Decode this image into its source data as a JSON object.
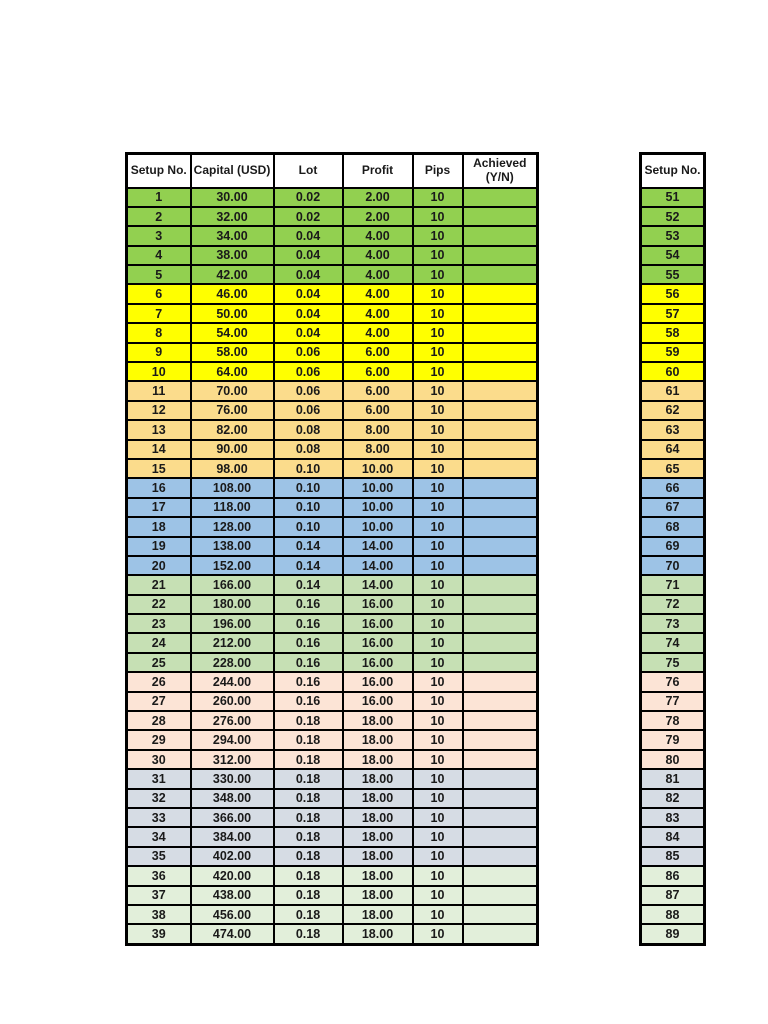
{
  "page": {
    "background": "#FFFFFF",
    "text_color": "#1A1A1A",
    "border_color": "#000000"
  },
  "band_colors": {
    "green": "#92D050",
    "yellow": "#FFFF00",
    "gold": "#FBDC8C",
    "blue": "#9DC3E6",
    "light_green": "#C6E0B4",
    "peach": "#FCE4D6",
    "gray_blue": "#D6DCE4",
    "pale_green": "#E2EFDA"
  },
  "main_table": {
    "headers": [
      "Setup No.",
      "Capital (USD)",
      "Lot",
      "Profit",
      "Pips",
      "Achieved\n(Y/N)"
    ],
    "rows": [
      [
        "1",
        "30.00",
        "0.02",
        "2.00",
        "10",
        "",
        "green"
      ],
      [
        "2",
        "32.00",
        "0.02",
        "2.00",
        "10",
        "",
        "green"
      ],
      [
        "3",
        "34.00",
        "0.04",
        "4.00",
        "10",
        "",
        "green"
      ],
      [
        "4",
        "38.00",
        "0.04",
        "4.00",
        "10",
        "",
        "green"
      ],
      [
        "5",
        "42.00",
        "0.04",
        "4.00",
        "10",
        "",
        "green"
      ],
      [
        "6",
        "46.00",
        "0.04",
        "4.00",
        "10",
        "",
        "yellow"
      ],
      [
        "7",
        "50.00",
        "0.04",
        "4.00",
        "10",
        "",
        "yellow"
      ],
      [
        "8",
        "54.00",
        "0.04",
        "4.00",
        "10",
        "",
        "yellow"
      ],
      [
        "9",
        "58.00",
        "0.06",
        "6.00",
        "10",
        "",
        "yellow"
      ],
      [
        "10",
        "64.00",
        "0.06",
        "6.00",
        "10",
        "",
        "yellow"
      ],
      [
        "11",
        "70.00",
        "0.06",
        "6.00",
        "10",
        "",
        "gold"
      ],
      [
        "12",
        "76.00",
        "0.06",
        "6.00",
        "10",
        "",
        "gold"
      ],
      [
        "13",
        "82.00",
        "0.08",
        "8.00",
        "10",
        "",
        "gold"
      ],
      [
        "14",
        "90.00",
        "0.08",
        "8.00",
        "10",
        "",
        "gold"
      ],
      [
        "15",
        "98.00",
        "0.10",
        "10.00",
        "10",
        "",
        "gold"
      ],
      [
        "16",
        "108.00",
        "0.10",
        "10.00",
        "10",
        "",
        "blue"
      ],
      [
        "17",
        "118.00",
        "0.10",
        "10.00",
        "10",
        "",
        "blue"
      ],
      [
        "18",
        "128.00",
        "0.10",
        "10.00",
        "10",
        "",
        "blue"
      ],
      [
        "19",
        "138.00",
        "0.14",
        "14.00",
        "10",
        "",
        "blue"
      ],
      [
        "20",
        "152.00",
        "0.14",
        "14.00",
        "10",
        "",
        "blue"
      ],
      [
        "21",
        "166.00",
        "0.14",
        "14.00",
        "10",
        "",
        "light_green"
      ],
      [
        "22",
        "180.00",
        "0.16",
        "16.00",
        "10",
        "",
        "light_green"
      ],
      [
        "23",
        "196.00",
        "0.16",
        "16.00",
        "10",
        "",
        "light_green"
      ],
      [
        "24",
        "212.00",
        "0.16",
        "16.00",
        "10",
        "",
        "light_green"
      ],
      [
        "25",
        "228.00",
        "0.16",
        "16.00",
        "10",
        "",
        "light_green"
      ],
      [
        "26",
        "244.00",
        "0.16",
        "16.00",
        "10",
        "",
        "peach"
      ],
      [
        "27",
        "260.00",
        "0.16",
        "16.00",
        "10",
        "",
        "peach"
      ],
      [
        "28",
        "276.00",
        "0.18",
        "18.00",
        "10",
        "",
        "peach"
      ],
      [
        "29",
        "294.00",
        "0.18",
        "18.00",
        "10",
        "",
        "peach"
      ],
      [
        "30",
        "312.00",
        "0.18",
        "18.00",
        "10",
        "",
        "peach"
      ],
      [
        "31",
        "330.00",
        "0.18",
        "18.00",
        "10",
        "",
        "gray_blue"
      ],
      [
        "32",
        "348.00",
        "0.18",
        "18.00",
        "10",
        "",
        "gray_blue"
      ],
      [
        "33",
        "366.00",
        "0.18",
        "18.00",
        "10",
        "",
        "gray_blue"
      ],
      [
        "34",
        "384.00",
        "0.18",
        "18.00",
        "10",
        "",
        "gray_blue"
      ],
      [
        "35",
        "402.00",
        "0.18",
        "18.00",
        "10",
        "",
        "gray_blue"
      ],
      [
        "36",
        "420.00",
        "0.18",
        "18.00",
        "10",
        "",
        "pale_green"
      ],
      [
        "37",
        "438.00",
        "0.18",
        "18.00",
        "10",
        "",
        "pale_green"
      ],
      [
        "38",
        "456.00",
        "0.18",
        "18.00",
        "10",
        "",
        "pale_green"
      ],
      [
        "39",
        "474.00",
        "0.18",
        "18.00",
        "10",
        "",
        "pale_green"
      ]
    ]
  },
  "side_table": {
    "header": "Setup No.",
    "rows": [
      [
        "51",
        "green"
      ],
      [
        "52",
        "green"
      ],
      [
        "53",
        "green"
      ],
      [
        "54",
        "green"
      ],
      [
        "55",
        "green"
      ],
      [
        "56",
        "yellow"
      ],
      [
        "57",
        "yellow"
      ],
      [
        "58",
        "yellow"
      ],
      [
        "59",
        "yellow"
      ],
      [
        "60",
        "yellow"
      ],
      [
        "61",
        "gold"
      ],
      [
        "62",
        "gold"
      ],
      [
        "63",
        "gold"
      ],
      [
        "64",
        "gold"
      ],
      [
        "65",
        "gold"
      ],
      [
        "66",
        "blue"
      ],
      [
        "67",
        "blue"
      ],
      [
        "68",
        "blue"
      ],
      [
        "69",
        "blue"
      ],
      [
        "70",
        "blue"
      ],
      [
        "71",
        "light_green"
      ],
      [
        "72",
        "light_green"
      ],
      [
        "73",
        "light_green"
      ],
      [
        "74",
        "light_green"
      ],
      [
        "75",
        "light_green"
      ],
      [
        "76",
        "peach"
      ],
      [
        "77",
        "peach"
      ],
      [
        "78",
        "peach"
      ],
      [
        "79",
        "peach"
      ],
      [
        "80",
        "peach"
      ],
      [
        "81",
        "gray_blue"
      ],
      [
        "82",
        "gray_blue"
      ],
      [
        "83",
        "gray_blue"
      ],
      [
        "84",
        "gray_blue"
      ],
      [
        "85",
        "gray_blue"
      ],
      [
        "86",
        "pale_green"
      ],
      [
        "87",
        "pale_green"
      ],
      [
        "88",
        "pale_green"
      ],
      [
        "89",
        "pale_green"
      ]
    ]
  }
}
